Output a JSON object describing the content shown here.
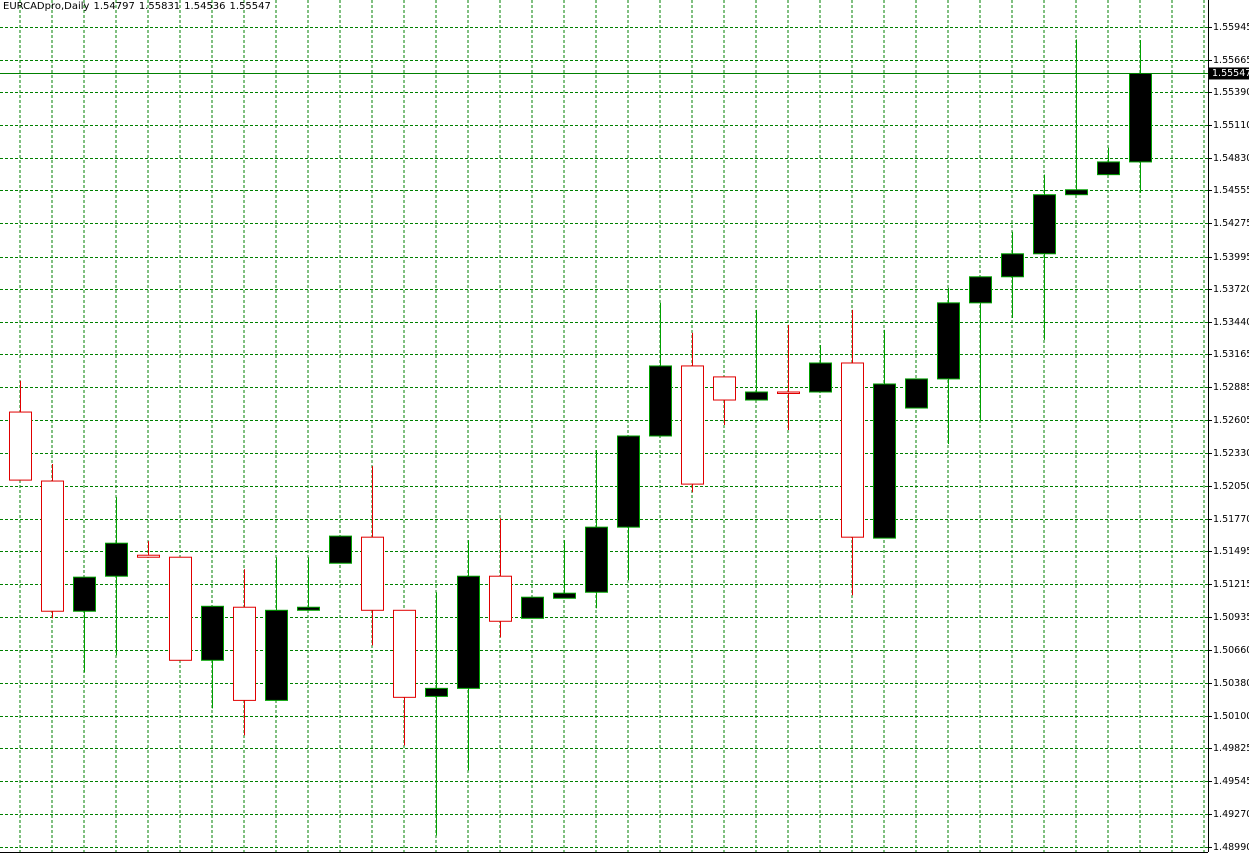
{
  "chart_data": {
    "type": "candlestick",
    "title": "EURCADpro,Daily",
    "open": [
      1.52676,
      1.52091,
      1.50987,
      1.51284,
      1.51462,
      1.51445,
      1.50571,
      1.51021,
      1.50231,
      1.50995,
      1.51394,
      1.51615,
      1.50995,
      1.50265,
      1.50333,
      1.51284,
      1.50927,
      1.51097,
      1.51148,
      1.517,
      1.52473,
      1.53067,
      1.52974,
      1.52778,
      1.52846,
      1.52846,
      1.53092,
      1.51607,
      1.5271,
      1.52957,
      1.53602,
      1.53823,
      1.54018,
      1.54519,
      1.54689,
      1.54797
    ],
    "high": [
      1.5294,
      1.52235,
      1.51276,
      1.51955,
      1.51581,
      1.51445,
      1.51029,
      1.51343,
      1.51445,
      1.51445,
      1.51624,
      1.52218,
      1.50995,
      1.51148,
      1.5159,
      1.51776,
      1.51106,
      1.5159,
      1.52354,
      1.52473,
      1.53602,
      1.53347,
      1.52974,
      1.53542,
      1.53415,
      1.53245,
      1.53542,
      1.53373,
      1.52957,
      1.53729,
      1.53823,
      1.54205,
      1.54689,
      1.55835,
      1.54918,
      1.55831
    ],
    "low": [
      1.52099,
      1.50927,
      1.50469,
      1.50613,
      1.51445,
      1.50571,
      1.50163,
      1.49934,
      1.50231,
      1.50995,
      1.51394,
      1.50698,
      1.49849,
      1.49085,
      1.49637,
      1.50766,
      1.50927,
      1.51097,
      1.51012,
      1.5125,
      1.52473,
      1.51997,
      1.52566,
      1.52778,
      1.52524,
      1.52846,
      1.51123,
      1.51607,
      1.5271,
      1.52405,
      1.526,
      1.53474,
      1.53288,
      1.54519,
      1.54689,
      1.54536
    ],
    "close": [
      1.52099,
      1.50987,
      1.51276,
      1.51564,
      1.51445,
      1.50571,
      1.51029,
      1.50231,
      1.50995,
      1.51021,
      1.51624,
      1.50995,
      1.50257,
      1.50333,
      1.51284,
      1.50902,
      1.51106,
      1.5114,
      1.517,
      1.52473,
      1.53067,
      1.52065,
      1.52778,
      1.52846,
      1.52838,
      1.53092,
      1.51615,
      1.52914,
      1.52957,
      1.53602,
      1.53823,
      1.54018,
      1.54519,
      1.54561,
      1.54797,
      1.55547
    ],
    "last_price": 1.55547,
    "ylim": [
      1.4892,
      1.5617
    ],
    "yticks": [
      1.55945,
      1.55665,
      {
        "value": 1.5539,
        "label": "1.55390"
      },
      {
        "value": 1.5511,
        "label": "1.55110"
      },
      {
        "value": 1.5483,
        "label": "1.54830"
      },
      1.54555,
      1.54275,
      1.53995,
      {
        "value": 1.5372,
        "label": "1.53720"
      },
      {
        "value": 1.5344,
        "label": "1.53440"
      },
      1.53165,
      1.52885,
      1.52605,
      {
        "value": 1.5233,
        "label": "1.52330"
      },
      {
        "value": 1.5205,
        "label": "1.52050"
      },
      {
        "value": 1.5177,
        "label": "1.51770"
      },
      1.51495,
      1.51215,
      1.50935,
      {
        "value": 1.5066,
        "label": "1.50660"
      },
      {
        "value": 1.5038,
        "label": "1.50380"
      },
      {
        "value": 1.501,
        "label": "1.50100"
      },
      1.49825,
      1.49545,
      {
        "value": 1.4927,
        "label": "1.49270"
      },
      {
        "value": 1.4899,
        "label": "1.48990"
      }
    ],
    "grid": true,
    "grid_color": "#008000",
    "up_color": "#000000",
    "up_line_color": "#00a000",
    "down_color": "#ffffff",
    "down_line_color": "#e00000"
  }
}
